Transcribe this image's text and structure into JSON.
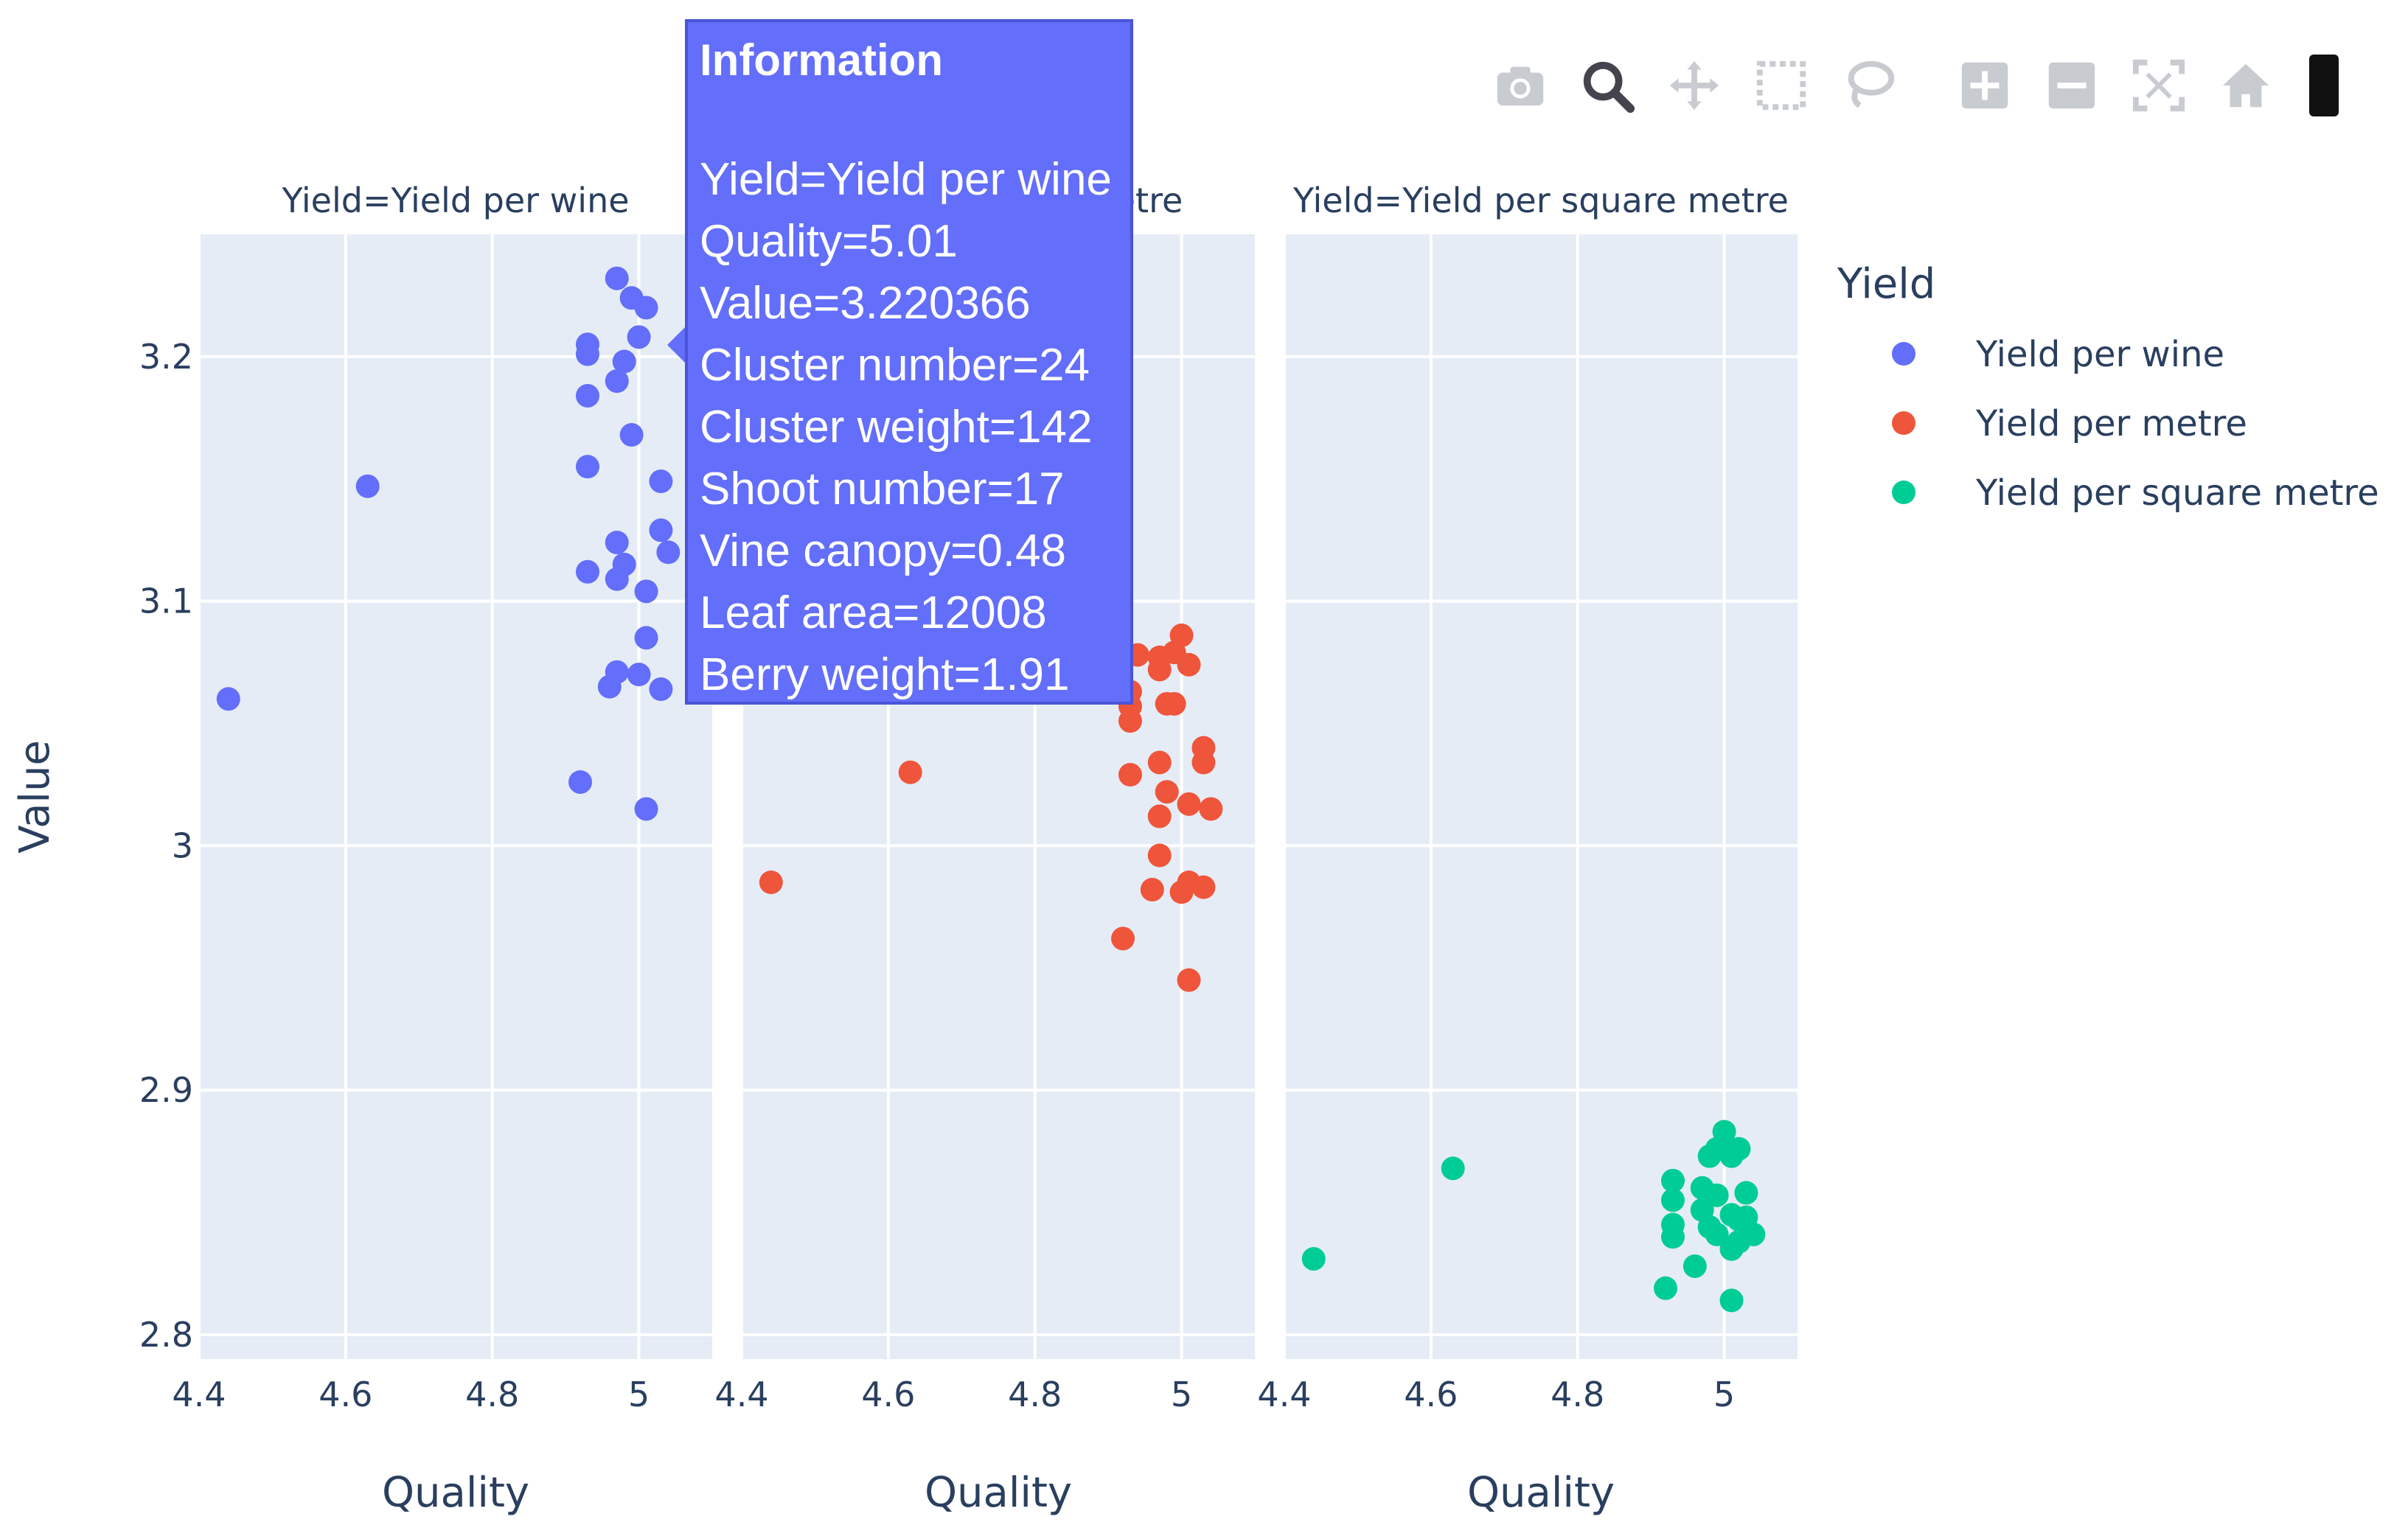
{
  "chart_data": {
    "type": "scatter",
    "facet_titles": [
      "Yield=Yield per wine",
      "Yield=Yield per metre",
      "Yield=Yield per square metre"
    ],
    "xlabel": "Quality",
    "ylabel": "Value",
    "xlim": [
      4.4,
      5.1
    ],
    "ylim": [
      2.79,
      3.25
    ],
    "x_ticks": [
      "4.4",
      "4.6",
      "4.8",
      "5"
    ],
    "y_ticks": [
      "2.8",
      "2.9",
      "3",
      "3.1",
      "3.2"
    ],
    "legend_title": "Yield",
    "legend_position": "right",
    "grid": true,
    "series": [
      {
        "name": "Yield per wine",
        "color": "#636efa",
        "points": [
          [
            4.44,
            3.06
          ],
          [
            4.63,
            3.147
          ],
          [
            4.92,
            3.026
          ],
          [
            4.93,
            3.205
          ],
          [
            4.93,
            3.201
          ],
          [
            4.93,
            3.184
          ],
          [
            4.93,
            3.155
          ],
          [
            4.93,
            3.112
          ],
          [
            4.96,
            3.065
          ],
          [
            4.97,
            3.232
          ],
          [
            4.97,
            3.19
          ],
          [
            4.97,
            3.124
          ],
          [
            4.97,
            3.109
          ],
          [
            4.97,
            3.071
          ],
          [
            4.98,
            3.198
          ],
          [
            4.98,
            3.115
          ],
          [
            4.99,
            3.224
          ],
          [
            4.99,
            3.168
          ],
          [
            5.0,
            3.208
          ],
          [
            5.0,
            3.07
          ],
          [
            5.01,
            3.22
          ],
          [
            5.01,
            3.104
          ],
          [
            5.01,
            3.085
          ],
          [
            5.01,
            3.015
          ],
          [
            5.03,
            3.149
          ],
          [
            5.03,
            3.129
          ],
          [
            5.03,
            3.064
          ],
          [
            5.04,
            3.12
          ]
        ]
      },
      {
        "name": "Yield per metre",
        "color": "#ef553b",
        "points": [
          [
            4.44,
            2.985
          ],
          [
            4.63,
            3.03
          ],
          [
            4.92,
            2.962
          ],
          [
            4.93,
            3.029
          ],
          [
            4.93,
            3.051
          ],
          [
            4.93,
            3.057
          ],
          [
            4.93,
            3.063
          ],
          [
            4.94,
            3.078
          ],
          [
            4.96,
            2.982
          ],
          [
            4.97,
            3.034
          ],
          [
            4.97,
            2.996
          ],
          [
            4.97,
            3.012
          ],
          [
            4.97,
            3.072
          ],
          [
            4.97,
            3.077
          ],
          [
            4.98,
            3.058
          ],
          [
            4.98,
            3.022
          ],
          [
            4.99,
            3.058
          ],
          [
            4.99,
            3.079
          ],
          [
            5.0,
            3.086
          ],
          [
            5.0,
            2.981
          ],
          [
            5.01,
            3.074
          ],
          [
            5.01,
            3.017
          ],
          [
            5.01,
            2.985
          ],
          [
            5.01,
            2.945
          ],
          [
            5.03,
            3.04
          ],
          [
            5.03,
            3.034
          ],
          [
            5.03,
            2.983
          ],
          [
            5.04,
            3.015
          ]
        ]
      },
      {
        "name": "Yield per square metre",
        "color": "#00cc96",
        "points": [
          [
            4.44,
            2.831
          ],
          [
            4.63,
            2.868
          ],
          [
            4.92,
            2.819
          ],
          [
            4.93,
            2.863
          ],
          [
            4.93,
            2.855
          ],
          [
            4.93,
            2.845
          ],
          [
            4.93,
            2.84
          ],
          [
            4.96,
            2.828
          ],
          [
            4.97,
            2.86
          ],
          [
            4.97,
            2.851
          ],
          [
            4.98,
            2.873
          ],
          [
            4.98,
            2.844
          ],
          [
            4.99,
            2.876
          ],
          [
            4.99,
            2.857
          ],
          [
            4.99,
            2.841
          ],
          [
            5.0,
            2.883
          ],
          [
            5.0,
            2.877
          ],
          [
            5.01,
            2.873
          ],
          [
            5.01,
            2.849
          ],
          [
            5.01,
            2.835
          ],
          [
            5.01,
            2.814
          ],
          [
            5.02,
            2.876
          ],
          [
            5.02,
            2.847
          ],
          [
            5.02,
            2.838
          ],
          [
            5.03,
            2.858
          ],
          [
            5.03,
            2.848
          ],
          [
            5.04,
            2.841
          ]
        ]
      }
    ]
  },
  "tooltip": {
    "title": "Information",
    "lines": [
      "Yield=Yield per wine",
      "Quality=5.01",
      "Value=3.220366",
      "Cluster number=24",
      "Cluster weight=142",
      "Shoot number=17",
      "Vine canopy=0.48",
      "Leaf area=12008",
      "Berry weight=1.91"
    ]
  },
  "modebar": {
    "icons": [
      "camera-icon",
      "zoom-icon",
      "pan-icon",
      "box-select-icon",
      "lasso-select-icon",
      "zoom-in-icon",
      "zoom-out-icon",
      "autoscale-icon",
      "reset-axes-icon",
      "plotly-logo"
    ]
  }
}
